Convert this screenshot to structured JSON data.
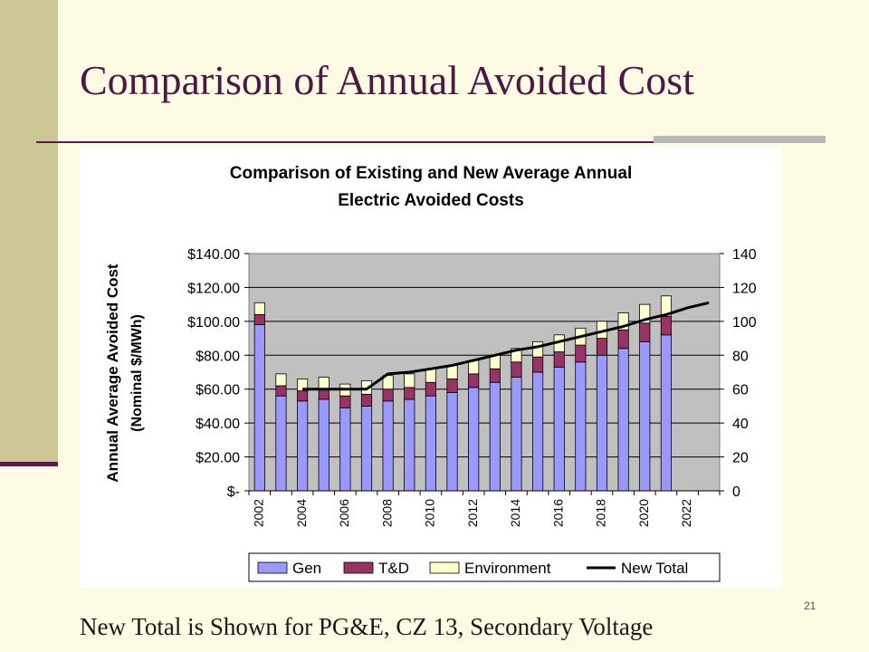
{
  "slide": {
    "title": "Comparison of Annual Avoided Cost",
    "caption": "New Total is Shown for PG&E, CZ 13, Secondary Voltage",
    "page_number": "21"
  },
  "colors": {
    "background": "#fdfbe3",
    "accent_bar": "#cbc896",
    "title": "#4f1844",
    "plot_area": "#c0c0c0",
    "gen": "#9999ff",
    "td": "#993366",
    "environment": "#ffffcc",
    "new_total": "#000000"
  },
  "chart_data": {
    "type": "bar",
    "stacked": true,
    "title_lines": [
      "Comparison of Existing and New Average Annual",
      "Electric Avoided Costs"
    ],
    "ylabel_lines": [
      "Annual Average Avoided Cost",
      "(Nominal $/MWh)"
    ],
    "y_left": {
      "lim": [
        0,
        140
      ],
      "ticks": [
        0,
        20,
        40,
        60,
        80,
        100,
        120,
        140
      ],
      "tick_labels": [
        "$-",
        "$20.00",
        "$40.00",
        "$60.00",
        "$80.00",
        "$100.00",
        "$120.00",
        "$140.00"
      ]
    },
    "y_right": {
      "lim": [
        0,
        140
      ],
      "ticks": [
        0,
        20,
        40,
        60,
        80,
        100,
        120,
        140
      ],
      "tick_labels": [
        "0",
        "20",
        "40",
        "60",
        "80",
        "100",
        "120",
        "140"
      ]
    },
    "years": [
      2002,
      2003,
      2004,
      2005,
      2006,
      2007,
      2008,
      2009,
      2010,
      2011,
      2012,
      2013,
      2014,
      2015,
      2016,
      2017,
      2018,
      2019,
      2020,
      2021,
      2022,
      2023
    ],
    "x_tick_labels": [
      "2002",
      "2004",
      "2006",
      "2008",
      "2010",
      "2012",
      "2014",
      "2016",
      "2018",
      "2020",
      "2022"
    ],
    "grid": true,
    "legend_position": "bottom",
    "series": [
      {
        "name": "Gen",
        "kind": "bar",
        "color": "#9999ff",
        "values": [
          98,
          56,
          53,
          54,
          49,
          50,
          53,
          54,
          56,
          58,
          61,
          64,
          67,
          70,
          73,
          76,
          80,
          84,
          88,
          92,
          null,
          null
        ]
      },
      {
        "name": "T&D",
        "kind": "bar",
        "color": "#993366",
        "values": [
          6,
          6,
          6,
          6,
          7,
          7,
          7,
          7,
          8,
          8,
          8,
          8,
          9,
          9,
          9,
          10,
          10,
          11,
          11,
          11,
          null,
          null
        ]
      },
      {
        "name": "Environment",
        "kind": "bar",
        "color": "#ffffcc",
        "values": [
          7,
          7,
          7,
          7,
          7,
          8,
          8,
          8,
          8,
          8,
          8,
          8,
          8,
          9,
          10,
          10,
          10,
          10,
          11,
          12,
          null,
          null
        ]
      },
      {
        "name": "New Total",
        "kind": "line",
        "color": "#000000",
        "values": [
          null,
          null,
          60,
          60,
          60,
          60,
          69,
          70,
          72,
          74,
          77,
          80,
          83,
          85,
          88,
          91,
          94,
          97,
          101,
          104,
          108,
          111
        ]
      }
    ]
  }
}
